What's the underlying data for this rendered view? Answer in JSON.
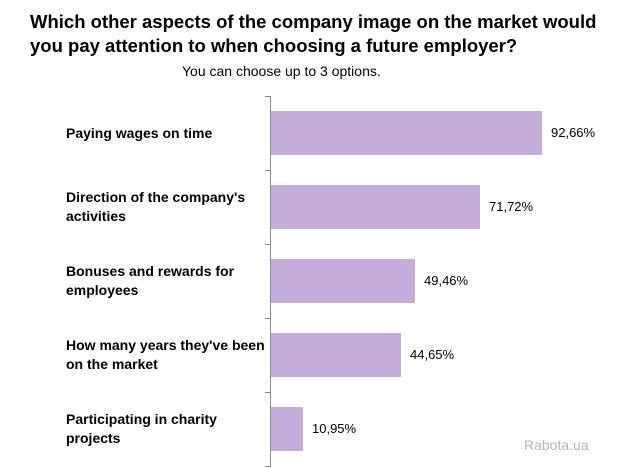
{
  "chart_data": {
    "type": "bar",
    "orientation": "horizontal",
    "title": "Which other aspects of the company image on the market would you pay attention to when choosing a future employer?",
    "subtitle": "You can choose up to 3 options.",
    "categories": [
      "Paying wages on time",
      "Direction of the company's activities",
      "Bonuses and rewards for employees",
      "How many years they've been on the market",
      "Participating in charity projects"
    ],
    "values": [
      92.66,
      71.72,
      49.46,
      44.65,
      10.95
    ],
    "value_labels": [
      "92,66%",
      "71,72%",
      "49,46%",
      "44,65%",
      "10,95%"
    ],
    "xlim": [
      0,
      100
    ],
    "grid": false,
    "bar_color": "#c5aedb"
  },
  "watermark": "Rabota.ua"
}
